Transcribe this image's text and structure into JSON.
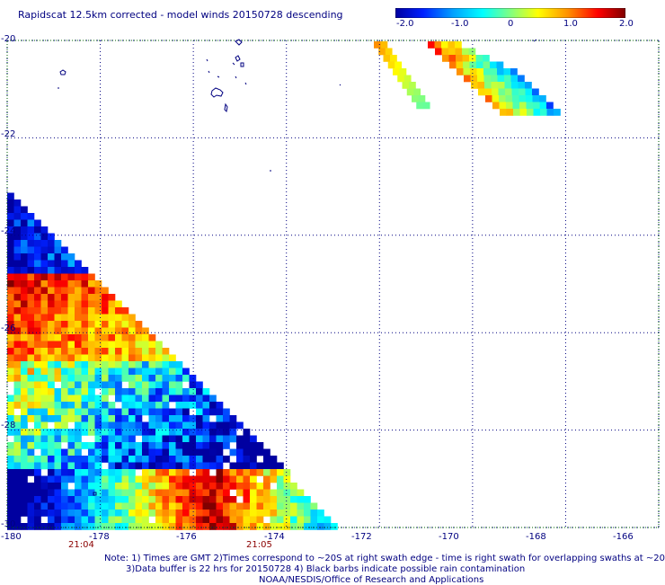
{
  "title": "Rapidscat 12.5km corrected - model winds 20150728 descending",
  "colorbar": {
    "labels": [
      "-2.0",
      "-1.0",
      "0",
      "1.0",
      "2.0"
    ],
    "range": [
      -2.0,
      2.0
    ],
    "colors": [
      "#0000c0",
      "#0040ff",
      "#00c8ff",
      "#40ffc0",
      "#c0ff40",
      "#ffff00",
      "#ff8000",
      "#ff0000",
      "#a00000"
    ]
  },
  "axes": {
    "lat_labels": [
      "-20",
      "-22",
      "-24",
      "-26",
      "-28",
      "-30"
    ],
    "lon_labels": [
      "-180",
      "-178",
      "-176",
      "-174",
      "-172",
      "-170",
      "-168",
      "-166"
    ],
    "lat_range": [
      -30,
      -20
    ],
    "lon_range": [
      -180,
      -166
    ]
  },
  "times": [
    {
      "label": "21:04",
      "lon": -178.9
    },
    {
      "label": "21:05",
      "lon": -174.8
    }
  ],
  "notes": [
    "Note: 1) Times are GMT 2)Times correspond to ~20S at right swath edge - time is right swath for overlapping swaths at ~20S",
    "3)Data buffer is 22 hrs for 20150728 4) Black barbs indicate possible rain contamination",
    "NOAA/NESDIS/Office of Research and Applications"
  ],
  "colors": {
    "text": "#000080",
    "grid": "#000080",
    "time": "#8b0000",
    "coast": "#000080"
  }
}
